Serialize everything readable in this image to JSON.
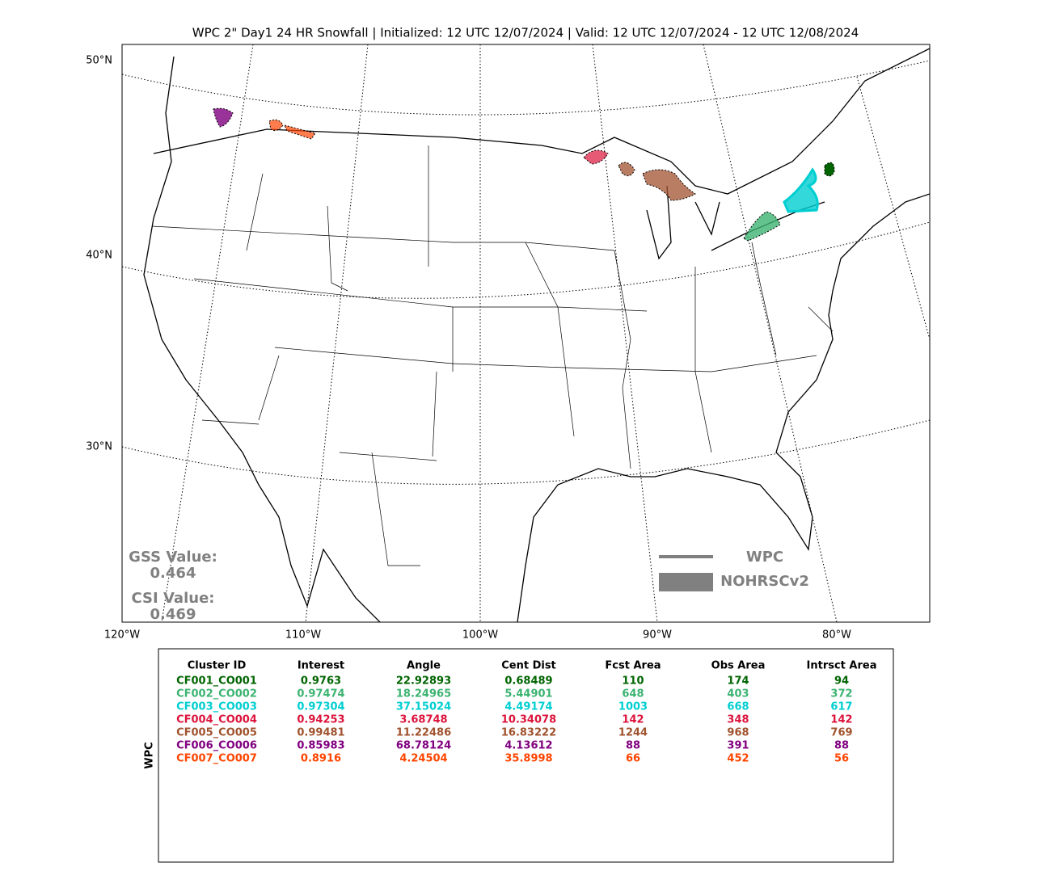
{
  "title": "WPC 2\" Day1 24 HR Snowfall | Initialized: 12 UTC 12/07/2024 | Valid: 12 UTC 12/07/2024 - 12 UTC 12/08/2024",
  "map": {
    "lat_labels": [
      "50°N",
      "40°N",
      "30°N"
    ],
    "lon_labels": [
      "120°W",
      "110°W",
      "100°W",
      "90°W",
      "80°W"
    ],
    "gss_label": "GSS Value:",
    "gss_value": "0.464",
    "csi_label": "CSI Value:",
    "csi_value": "0.469",
    "legend": [
      "WPC",
      "NOHRSCv2"
    ]
  },
  "table": {
    "side_label": "WPC",
    "columns": [
      "Cluster ID",
      "Interest",
      "Angle",
      "Cent Dist",
      "Fcst Area",
      "Obs Area",
      "Intrsct Area"
    ],
    "rows": [
      {
        "color": "#006400",
        "cells": [
          "CF001_CO001",
          "0.9763",
          "22.92893",
          "0.68489",
          "110",
          "174",
          "94"
        ]
      },
      {
        "color": "#3cb371",
        "cells": [
          "CF002_CO002",
          "0.97474",
          "18.24965",
          "5.44901",
          "648",
          "403",
          "372"
        ]
      },
      {
        "color": "#00ced1",
        "cells": [
          "CF003_CO003",
          "0.97304",
          "37.15024",
          "4.49174",
          "1003",
          "668",
          "617"
        ]
      },
      {
        "color": "#dc143c",
        "cells": [
          "CF004_CO004",
          "0.94253",
          "3.68748",
          "10.34078",
          "142",
          "348",
          "142"
        ]
      },
      {
        "color": "#a0522d",
        "cells": [
          "CF005_CO005",
          "0.99481",
          "11.22486",
          "16.83222",
          "1244",
          "968",
          "769"
        ]
      },
      {
        "color": "#800080",
        "cells": [
          "CF006_CO006",
          "0.85983",
          "68.78124",
          "4.13612",
          "88",
          "391",
          "88"
        ]
      },
      {
        "color": "#ff4500",
        "cells": [
          "CF007_CO007",
          "0.8916",
          "4.24504",
          "35.8998",
          "66",
          "452",
          "56"
        ]
      }
    ]
  }
}
